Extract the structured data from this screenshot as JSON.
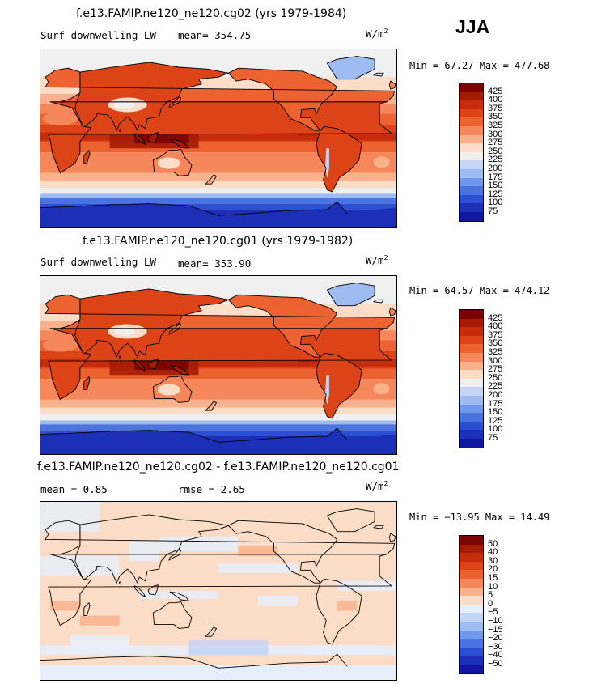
{
  "season": "JJA",
  "panels": [
    {
      "title": "f.e13.FAMIP.ne120_ne120.cg02 (yrs 1979-1984)",
      "left_label": "Surf downwelling LW",
      "stat_text": "mean= 354.75",
      "units_base": "W/m",
      "units_exp": "2",
      "minmax": "Min =  67.27 Max = 477.68",
      "style": "abs"
    },
    {
      "title": "f.e13.FAMIP.ne120_ne120.cg01 (yrs 1979-1982)",
      "left_label": "Surf downwelling LW",
      "stat_text": "mean= 353.90",
      "units_base": "W/m",
      "units_exp": "2",
      "minmax": "Min =  64.57 Max = 474.12",
      "style": "abs"
    },
    {
      "title": "f.e13.FAMIP.ne120_ne120.cg02 - f.e13.FAMIP.ne120_ne120.cg01",
      "left_label": "mean =    0.85",
      "stat_text": "rmse =    2.65",
      "units_base": "W/m",
      "units_exp": "2",
      "minmax": "Min = −13.95 Max =  14.49",
      "style": "diff"
    }
  ],
  "colorbar_abs": {
    "ticks": [
      "425",
      "400",
      "375",
      "350",
      "325",
      "300",
      "275",
      "250",
      "225",
      "200",
      "175",
      "150",
      "125",
      "100",
      "75"
    ],
    "colors": [
      "#7a0403",
      "#a51c06",
      "#c42c0c",
      "#dc4418",
      "#ec6230",
      "#f5875a",
      "#f9b18b",
      "#fbdcc7",
      "#f0f0f0",
      "#c4d5f5",
      "#9cbcf2",
      "#6f98ea",
      "#4a73e0",
      "#2c4fd2",
      "#1b2fb7",
      "#0f16a0"
    ]
  },
  "colorbar_diff": {
    "ticks": [
      "50",
      "40",
      "30",
      "20",
      "15",
      "10",
      "5",
      "0",
      "−5",
      "−10",
      "−15",
      "−20",
      "−30",
      "−40",
      "−50"
    ],
    "colors": [
      "#7a0403",
      "#a51c06",
      "#c42c0c",
      "#dc4418",
      "#ec6230",
      "#f5875a",
      "#f9b18b",
      "#fbdcc7",
      "#e6eefb",
      "#c4d5f5",
      "#9cbcf2",
      "#6f98ea",
      "#4a73e0",
      "#2c4fd2",
      "#1b2fb7",
      "#0f16a0"
    ]
  }
}
